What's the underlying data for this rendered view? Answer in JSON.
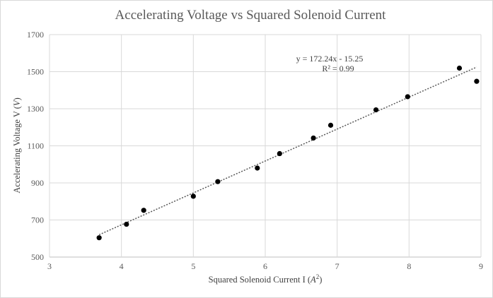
{
  "chart_data": {
    "type": "scatter",
    "title": "Accelerating Voltage vs Squared Solenoid Current",
    "xlabel_main": "Squared Solenoid Current I (",
    "xlabel_unit": "A",
    "xlabel_sup": "2",
    "xlabel_close": ")",
    "ylabel_main": "Accelerating Voltage V (",
    "ylabel_unit": "V",
    "ylabel_close": ")",
    "xlim": [
      3,
      9
    ],
    "ylim": [
      500,
      1700
    ],
    "xticks": [
      3,
      4,
      5,
      6,
      7,
      8,
      9
    ],
    "yticks": [
      500,
      700,
      900,
      1100,
      1300,
      1500,
      1700
    ],
    "grid": true,
    "points": [
      {
        "x": 3.69,
        "y": 604
      },
      {
        "x": 4.07,
        "y": 677
      },
      {
        "x": 4.31,
        "y": 752
      },
      {
        "x": 5.0,
        "y": 828
      },
      {
        "x": 5.34,
        "y": 907
      },
      {
        "x": 5.89,
        "y": 980
      },
      {
        "x": 6.2,
        "y": 1058
      },
      {
        "x": 6.67,
        "y": 1142
      },
      {
        "x": 6.91,
        "y": 1211
      },
      {
        "x": 7.54,
        "y": 1294
      },
      {
        "x": 7.98,
        "y": 1365
      },
      {
        "x": 8.7,
        "y": 1519
      },
      {
        "x": 8.94,
        "y": 1448
      }
    ],
    "trendline": {
      "slope": 172.24,
      "intercept": -15.25,
      "x_range": [
        3.69,
        8.94
      ],
      "equation": "y = 172.24x - 15.25",
      "r_squared": "R² = 0.99"
    },
    "colors": {
      "points": "#000000",
      "trendline": "#595959",
      "grid": "#d9d9d9",
      "text": "#595959"
    }
  }
}
